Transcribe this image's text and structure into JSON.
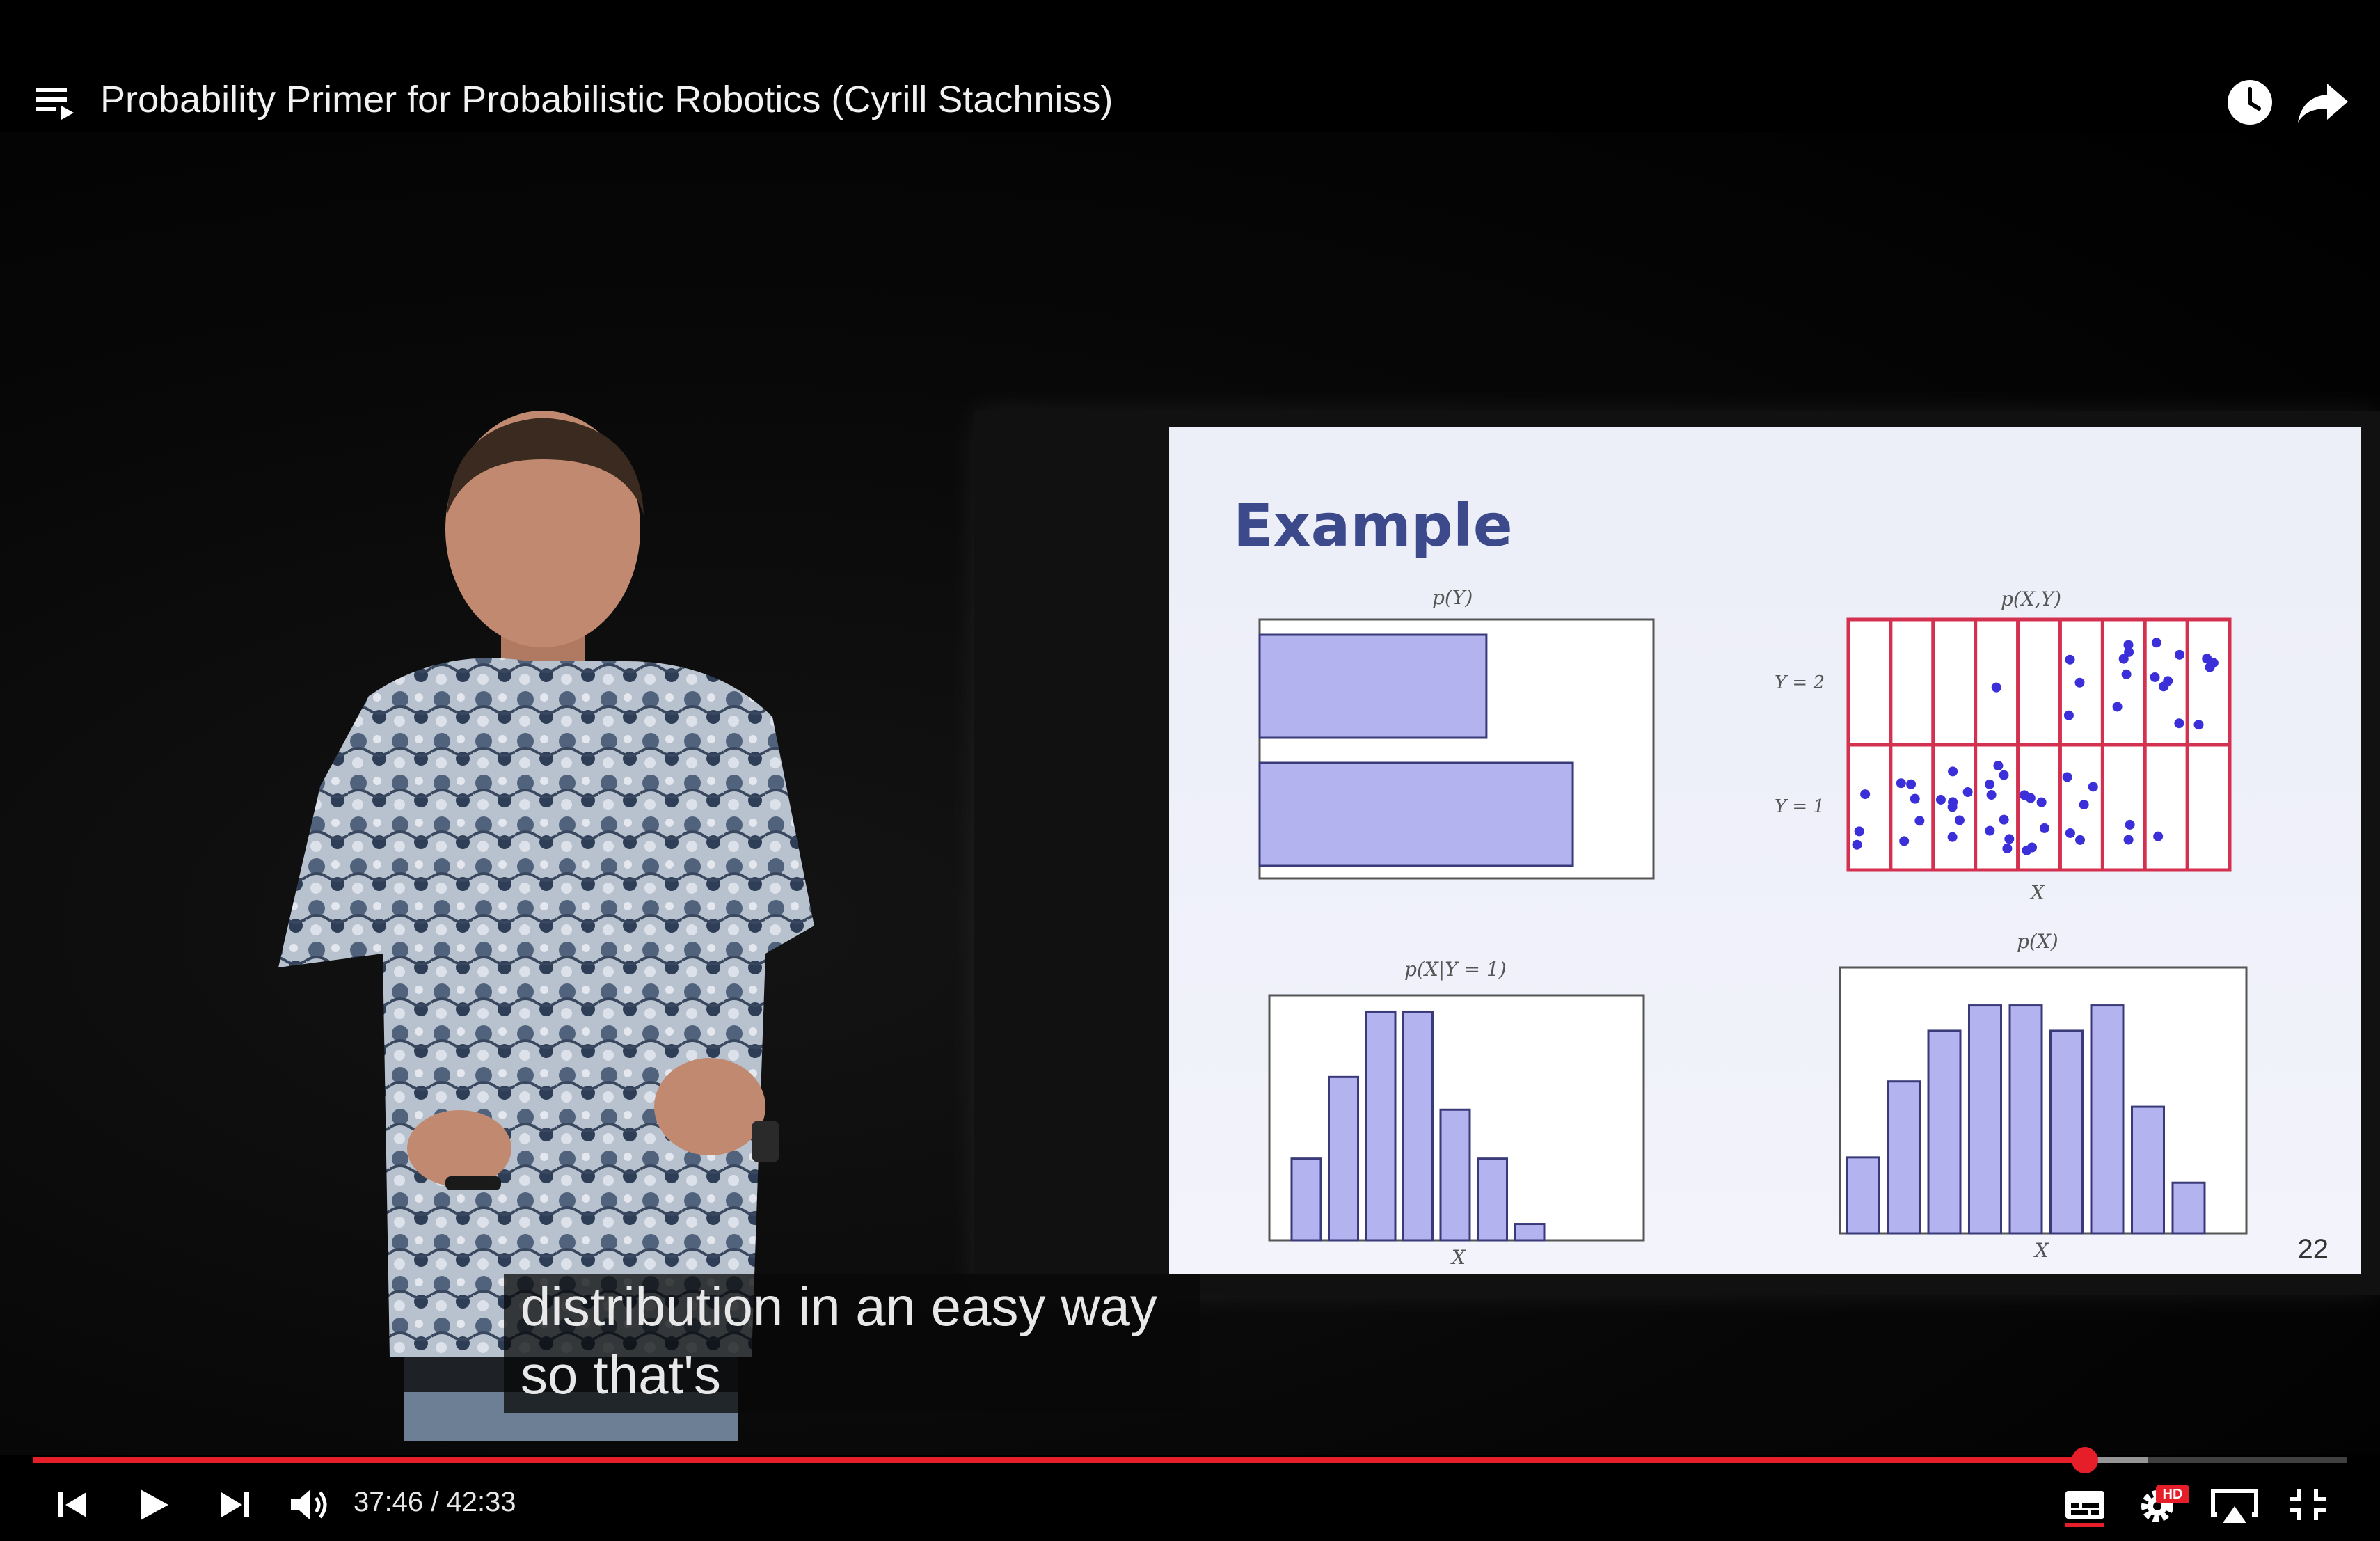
{
  "header": {
    "title": "Probability Primer for Probabilistic Robotics (Cyrill Stachniss)",
    "playlist_icon": "playlist-icon",
    "watch_later_icon": "clock-icon",
    "share_icon": "share-arrow-icon"
  },
  "slide": {
    "title": "Example",
    "page_number": "22",
    "plots": {
      "py_label": "p(Y)",
      "pxy_label": "p(X,Y)",
      "pxy_y2": "Y = 2",
      "pxy_y1": "Y = 1",
      "pxy_xlabel": "X",
      "pxgy_label": "p(X|Y = 1)",
      "pxgy_xlabel": "X",
      "px_label": "p(X)",
      "px_xlabel": "X"
    }
  },
  "captions": {
    "line1": "distribution in an easy way",
    "line2": "so that's"
  },
  "player": {
    "current_time": "37:46",
    "separator": " / ",
    "duration": "42:33",
    "played_fraction": 0.887,
    "buffered_fraction": 0.914,
    "accent_color": "#e61e2a",
    "hd_badge": "HD"
  },
  "chart_data": [
    {
      "type": "bar",
      "title": "p(Y)",
      "orientation": "horizontal",
      "categories": [
        "Y=2",
        "Y=1"
      ],
      "values": [
        0.42,
        0.58
      ]
    },
    {
      "type": "scatter",
      "title": "p(X,Y)",
      "xlabel": "X",
      "categories_y": [
        "Y = 2",
        "Y = 1"
      ],
      "grid": true
    },
    {
      "type": "bar",
      "title": "p(X|Y = 1)",
      "xlabel": "X",
      "values": [
        5,
        10,
        14,
        14,
        8,
        5,
        1
      ]
    },
    {
      "type": "bar",
      "title": "p(X)",
      "xlabel": "X",
      "values": [
        3,
        6,
        8,
        9,
        9,
        8,
        9,
        5,
        2
      ]
    }
  ]
}
